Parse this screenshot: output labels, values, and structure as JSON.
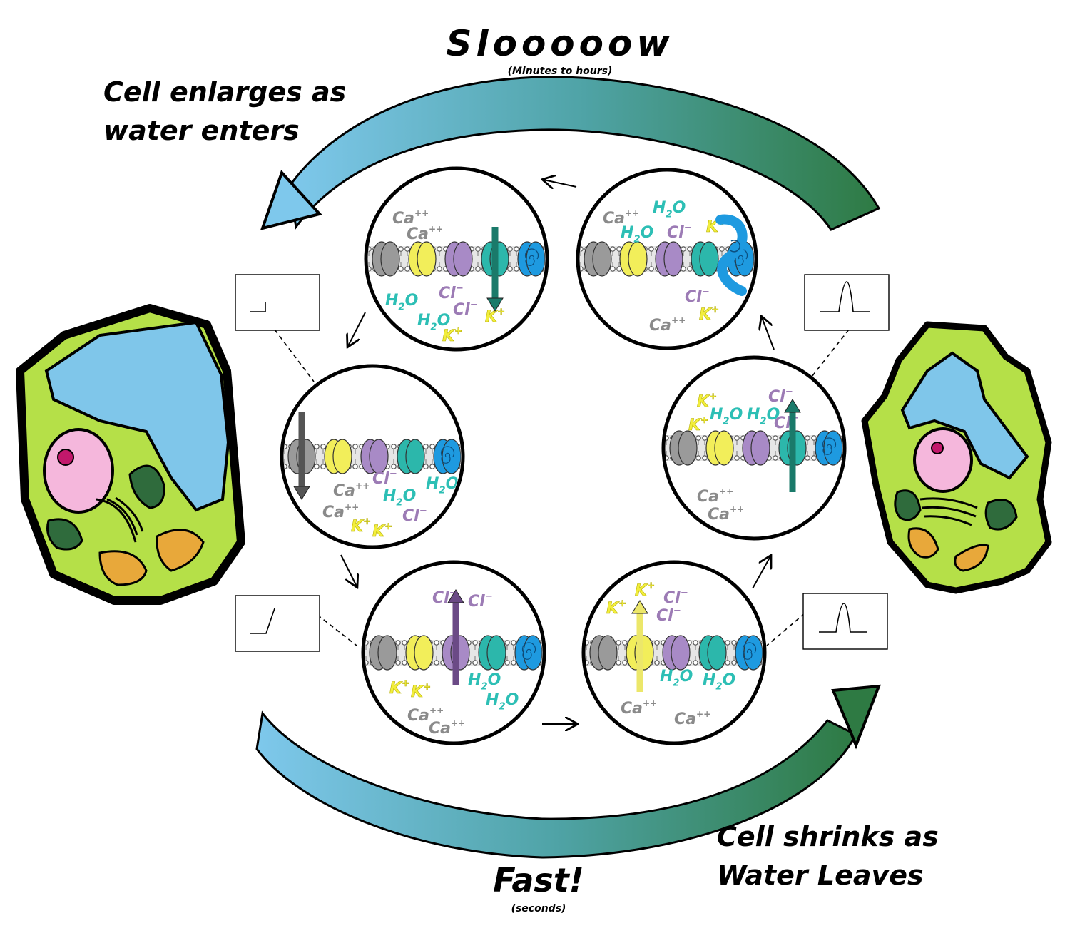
{
  "labels": {
    "slow_title": "Slooooow",
    "slow_sub": "(Minutes to hours)",
    "fast_title": "Fast!",
    "fast_sub": "(seconds)",
    "enlarge_line1": "Cell enlarges as",
    "enlarge_line2": "water enters",
    "shrink_line1": "Cell shrinks as",
    "shrink_line2": "Water Leaves"
  },
  "ions": {
    "ca": "Ca",
    "ca_charge": "++",
    "cl": "Cl",
    "cl_charge": "−",
    "h2o_h": "H",
    "h2o_2": "2",
    "h2o_o": "O",
    "k": "K",
    "k_charge": "+"
  },
  "colors": {
    "cell_outline": "#000000",
    "cytoplasm": "#b5e048",
    "vacuole": "#7fc6ea",
    "nucleus": "#f5b7dc",
    "nucleolus": "#c2186b",
    "chloroplast": "#2f6b3c",
    "mitochondria": "#e8a83a",
    "arrow_start": "#7ec8ec",
    "arrow_end": "#2e7a43",
    "channel_gray": "#9a9a9a",
    "channel_yellow": "#f2ee5a",
    "channel_purple": "#a88ac6",
    "channel_teal": "#2cb7ab",
    "channel_blue": "#1e9ae0"
  }
}
